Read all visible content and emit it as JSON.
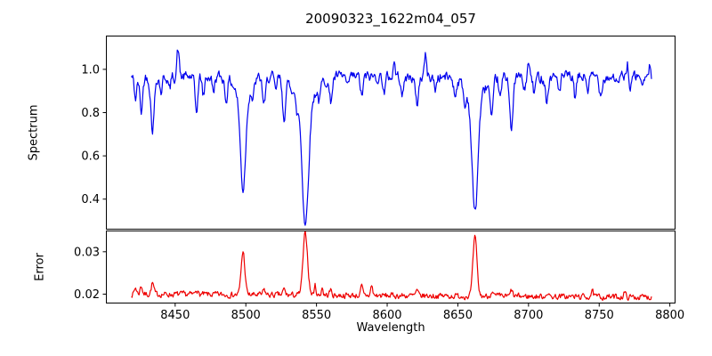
{
  "figure": {
    "background": "#ffffff"
  },
  "chart_data": {
    "type": "line",
    "title": "20090323_1622m04_057",
    "xlabel": "Wavelength",
    "x_start": 8419,
    "x_end": 8787,
    "x_step": 0.5,
    "xlim": [
      8401,
      8804
    ],
    "xticks": [
      8450,
      8500,
      8550,
      8600,
      8650,
      8700,
      8750,
      8800
    ],
    "xtick_labels": [
      "8450",
      "8500",
      "8550",
      "8600",
      "8650",
      "8700",
      "8750",
      "8800"
    ],
    "grid": false,
    "legend": "none",
    "axis_color": "#000000",
    "panels": [
      {
        "name": "spectrum",
        "ylabel": "Spectrum",
        "line_color": "#0000ee",
        "ylim": [
          0.259,
          1.156
        ],
        "yticks": [
          0.4,
          0.6,
          0.8,
          1.0
        ],
        "ytick_labels": [
          "0.4",
          "0.6",
          "0.8",
          "1.0"
        ],
        "continuum": 0.965,
        "noise_amplitude": 0.022,
        "noise_phi": 0.5,
        "seed": 42,
        "absorption_lines": [
          {
            "center": 8498.0,
            "depth": 0.42,
            "sigma": 1.8
          },
          {
            "center": 8498.0,
            "depth": 0.1,
            "sigma": 5.0
          },
          {
            "center": 8542.1,
            "depth": 0.56,
            "sigma": 2.2
          },
          {
            "center": 8542.1,
            "depth": 0.12,
            "sigma": 7.0
          },
          {
            "center": 8662.1,
            "depth": 0.52,
            "sigma": 2.0
          },
          {
            "center": 8662.1,
            "depth": 0.11,
            "sigma": 6.0
          },
          {
            "center": 8422,
            "depth": 0.1,
            "sigma": 0.9
          },
          {
            "center": 8426,
            "depth": 0.16,
            "sigma": 1.0
          },
          {
            "center": 8434,
            "depth": 0.24,
            "sigma": 1.2
          },
          {
            "center": 8440,
            "depth": 0.07,
            "sigma": 0.8
          },
          {
            "center": 8446,
            "depth": 0.06,
            "sigma": 0.8
          },
          {
            "center": 8465,
            "depth": 0.16,
            "sigma": 1.0
          },
          {
            "center": 8470,
            "depth": 0.09,
            "sigma": 0.8
          },
          {
            "center": 8477,
            "depth": 0.07,
            "sigma": 0.8
          },
          {
            "center": 8486,
            "depth": 0.1,
            "sigma": 0.9
          },
          {
            "center": 8505,
            "depth": 0.07,
            "sigma": 0.8
          },
          {
            "center": 8513,
            "depth": 0.13,
            "sigma": 1.1
          },
          {
            "center": 8521,
            "depth": 0.07,
            "sigma": 0.8
          },
          {
            "center": 8527,
            "depth": 0.17,
            "sigma": 1.2
          },
          {
            "center": 8536,
            "depth": 0.08,
            "sigma": 0.9
          },
          {
            "center": 8552,
            "depth": 0.07,
            "sigma": 0.8
          },
          {
            "center": 8560,
            "depth": 0.11,
            "sigma": 1.0
          },
          {
            "center": 8572,
            "depth": 0.06,
            "sigma": 0.8
          },
          {
            "center": 8582,
            "depth": 0.09,
            "sigma": 0.9
          },
          {
            "center": 8598,
            "depth": 0.07,
            "sigma": 0.8
          },
          {
            "center": 8611,
            "depth": 0.08,
            "sigma": 0.9
          },
          {
            "center": 8621,
            "depth": 0.13,
            "sigma": 1.1
          },
          {
            "center": 8634,
            "depth": 0.06,
            "sigma": 0.8
          },
          {
            "center": 8648,
            "depth": 0.08,
            "sigma": 0.9
          },
          {
            "center": 8655,
            "depth": 0.09,
            "sigma": 0.8
          },
          {
            "center": 8674,
            "depth": 0.19,
            "sigma": 1.1
          },
          {
            "center": 8680,
            "depth": 0.1,
            "sigma": 0.9
          },
          {
            "center": 8688,
            "depth": 0.25,
            "sigma": 1.1
          },
          {
            "center": 8697,
            "depth": 0.07,
            "sigma": 0.8
          },
          {
            "center": 8704,
            "depth": 0.08,
            "sigma": 0.8
          },
          {
            "center": 8713,
            "depth": 0.11,
            "sigma": 1.0
          },
          {
            "center": 8722,
            "depth": 0.07,
            "sigma": 0.8
          },
          {
            "center": 8733,
            "depth": 0.1,
            "sigma": 0.9
          },
          {
            "center": 8742,
            "depth": 0.06,
            "sigma": 0.8
          },
          {
            "center": 8751,
            "depth": 0.08,
            "sigma": 0.9
          },
          {
            "center": 8763,
            "depth": 0.05,
            "sigma": 0.7
          },
          {
            "center": 8772,
            "depth": 0.07,
            "sigma": 0.8
          },
          {
            "center": 8781,
            "depth": 0.05,
            "sigma": 0.7
          }
        ],
        "emission_spikes": [
          {
            "center": 8452,
            "height": 0.13,
            "sigma": 0.8
          },
          {
            "center": 8605,
            "height": 0.07,
            "sigma": 0.7
          },
          {
            "center": 8627,
            "height": 0.1,
            "sigma": 0.8
          },
          {
            "center": 8700,
            "height": 0.06,
            "sigma": 0.7
          },
          {
            "center": 8770,
            "height": 0.07,
            "sigma": 0.7
          },
          {
            "center": 8786,
            "height": 0.05,
            "sigma": 0.6
          }
        ]
      },
      {
        "name": "error",
        "ylabel": "Error",
        "line_color": "#ee0000",
        "ylim": [
          0.0178,
          0.035
        ],
        "yticks": [
          0.02,
          0.03
        ],
        "ytick_labels": [
          "0.02",
          "0.03"
        ],
        "baseline_start": 0.02,
        "baseline_end": 0.0193,
        "noise_amplitude": 0.0006,
        "noise_phi": 0.4,
        "seed": 7,
        "peaks": [
          {
            "center": 8498.0,
            "height": 0.0102,
            "sigma": 1.3
          },
          {
            "center": 8542.1,
            "height": 0.0146,
            "sigma": 1.6
          },
          {
            "center": 8662.1,
            "height": 0.0138,
            "sigma": 1.4
          },
          {
            "center": 8422,
            "height": 0.0015,
            "sigma": 0.8
          },
          {
            "center": 8426,
            "height": 0.002,
            "sigma": 0.8
          },
          {
            "center": 8434,
            "height": 0.0026,
            "sigma": 0.9
          },
          {
            "center": 8465,
            "height": 0.0014,
            "sigma": 0.8
          },
          {
            "center": 8513,
            "height": 0.0012,
            "sigma": 0.8
          },
          {
            "center": 8527,
            "height": 0.0013,
            "sigma": 0.8
          },
          {
            "center": 8549,
            "height": 0.0023,
            "sigma": 0.7
          },
          {
            "center": 8554,
            "height": 0.0019,
            "sigma": 0.6
          },
          {
            "center": 8560,
            "height": 0.0012,
            "sigma": 0.8
          },
          {
            "center": 8582,
            "height": 0.0021,
            "sigma": 0.7
          },
          {
            "center": 8589,
            "height": 0.0023,
            "sigma": 0.7
          },
          {
            "center": 8621,
            "height": 0.0011,
            "sigma": 0.8
          },
          {
            "center": 8674,
            "height": 0.0012,
            "sigma": 0.8
          },
          {
            "center": 8688,
            "height": 0.0015,
            "sigma": 0.7
          },
          {
            "center": 8713,
            "height": 0.001,
            "sigma": 0.7
          },
          {
            "center": 8745,
            "height": 0.0012,
            "sigma": 0.8
          },
          {
            "center": 8768,
            "height": 0.001,
            "sigma": 0.7
          }
        ]
      }
    ]
  }
}
